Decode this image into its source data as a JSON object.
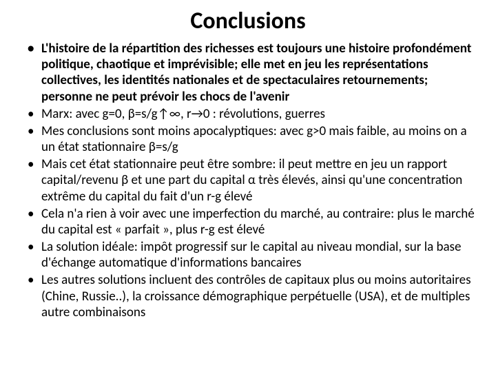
{
  "title": "Conclusions",
  "bullets": [
    {
      "text": "L'histoire de la répartition des richesses est toujours une histoire profondément politique, chaotique et imprévisible; elle met en jeu les représentations collectives, les identités nationales et de spectaculaires retournements; personne ne peut prévoir les chocs de l'avenir",
      "bold": true
    },
    {
      "text": "Marx: avec g=0, β=s/g↑∞, r→0 : révolutions, guerres",
      "bold": false
    },
    {
      "text": "Mes conclusions sont moins apocalyptiques: avec g>0 mais faible, au moins on a un état stationnaire β=s/g",
      "bold": false
    },
    {
      "text": "Mais cet état stationnaire peut être sombre: il peut mettre en jeu un rapport capital/revenu β et une part du capital α très élevés, ainsi qu'une concentration extrême du capital du fait d'un  r-g élevé",
      "bold": false
    },
    {
      "text": "Cela n'a rien à voir avec une imperfection du marché, au contraire: plus le marché du capital est « parfait », plus r-g est élevé",
      "bold": false
    },
    {
      "text": "La solution idéale: impôt progressif sur le capital au niveau mondial, sur la base d'échange automatique d'informations bancaires",
      "bold": false
    },
    {
      "text": "Les autres solutions incluent des contrôles de capitaux plus ou moins autoritaires (Chine, Russie..), la croissance démographique perpétuelle (USA), et de multiples autre combinaisons",
      "bold": false
    }
  ],
  "style": {
    "background_color": "#ffffff",
    "text_color": "#000000",
    "title_fontsize": 34,
    "bullet_fontsize": 19,
    "font_family": "Calibri"
  }
}
